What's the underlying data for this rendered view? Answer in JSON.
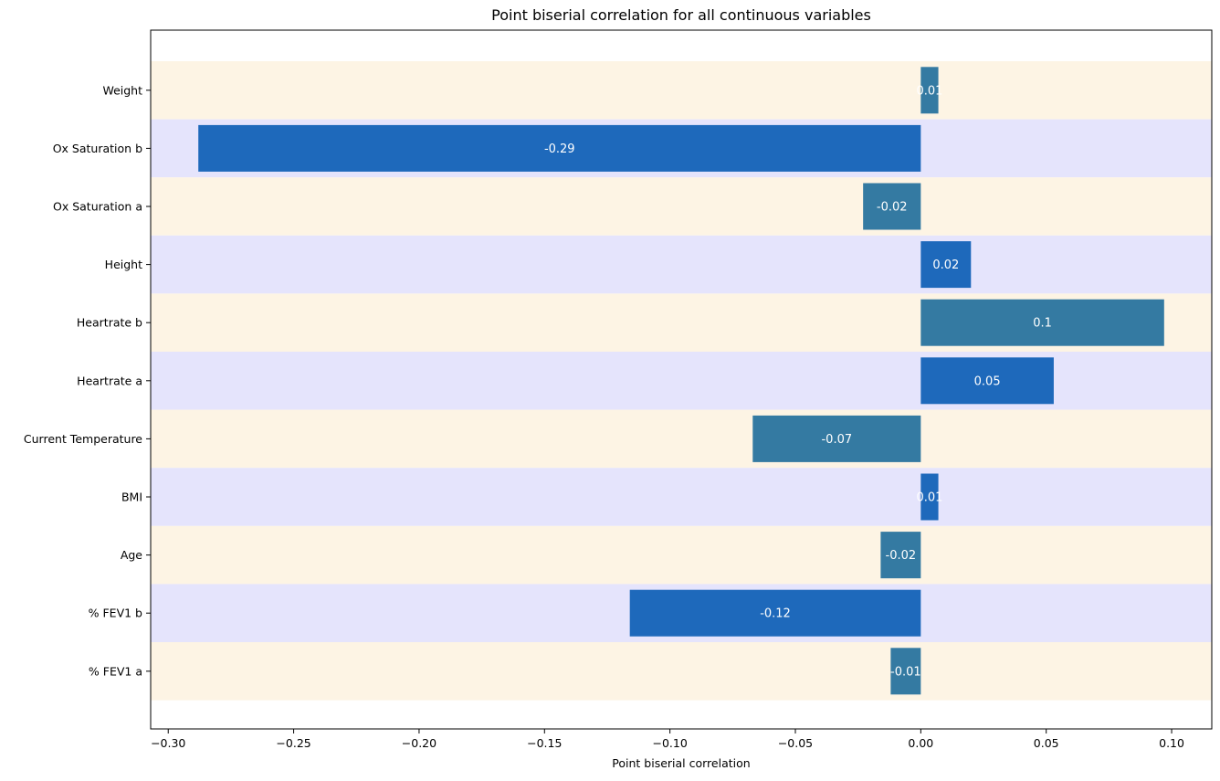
{
  "chart_data": {
    "type": "bar",
    "orientation": "horizontal",
    "title": "Point biserial correlation for all continuous variables",
    "xlabel": "Point biserial correlation",
    "ylabel": "",
    "xlim": [
      -0.307,
      0.116
    ],
    "xticks": [
      -0.3,
      -0.25,
      -0.2,
      -0.15,
      -0.1,
      -0.05,
      0.0,
      0.05,
      0.1
    ],
    "xtick_labels": [
      "−0.30",
      "−0.25",
      "−0.20",
      "−0.15",
      "−0.10",
      "−0.05",
      "0.00",
      "0.05",
      "0.10"
    ],
    "grid": false,
    "categories": [
      "Weight",
      "Ox Saturation b",
      "Ox Saturation a",
      "Height",
      "Heartrate b",
      "Heartrate a",
      "Current Temperature",
      "BMI",
      "Age",
      "% FEV1 b",
      "% FEV1 a"
    ],
    "values": [
      0.007,
      -0.288,
      -0.023,
      0.02,
      0.097,
      0.053,
      -0.067,
      0.007,
      -0.016,
      -0.116,
      -0.012
    ],
    "data_labels": [
      "0.01",
      "-0.29",
      "-0.02",
      "0.02",
      "0.1",
      "0.05",
      "-0.07",
      "0.01",
      "-0.02",
      "-0.12",
      "-0.01"
    ],
    "bar_colors": [
      "#347aa2",
      "#1e69bb"
    ],
    "band_colors": [
      "#fdf4e4",
      "#e5e4fc"
    ]
  }
}
